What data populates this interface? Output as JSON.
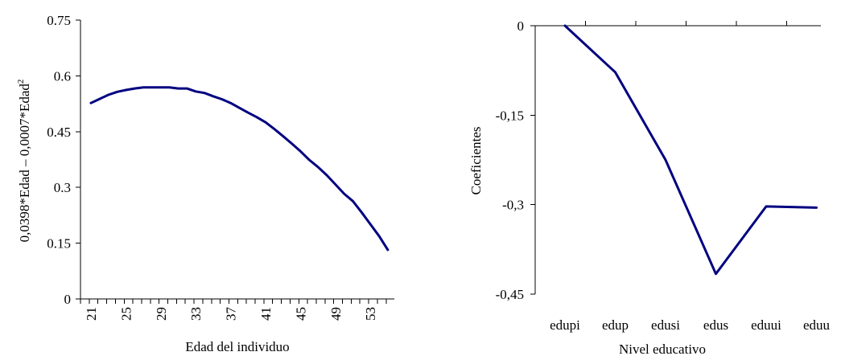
{
  "colors": {
    "series": "#000080",
    "axis": "#000000",
    "background": "#ffffff"
  },
  "chart_data": [
    {
      "type": "line",
      "title": "",
      "xlabel": "Edad del individuo",
      "ylabel_main": "0,0398*Edad – 0,0007*Edad",
      "ylabel_sup": "2",
      "ylim": [
        0,
        0.75
      ],
      "yticks": [
        "0",
        "0.15",
        "0.3",
        "0.45",
        "0.6",
        "0.75"
      ],
      "xticks": [
        "21",
        "25",
        "29",
        "33",
        "37",
        "41",
        "45",
        "49",
        "53"
      ],
      "x": [
        21,
        22,
        23,
        24,
        25,
        26,
        27,
        28,
        29,
        30,
        31,
        32,
        33,
        34,
        35,
        36,
        37,
        38,
        39,
        40,
        41,
        42,
        43,
        44,
        45,
        46,
        47,
        48,
        49,
        50,
        51,
        52,
        53,
        54,
        55
      ],
      "series": [
        {
          "values": [
            0.527,
            0.538,
            0.549,
            0.557,
            0.562,
            0.566,
            0.569,
            0.569,
            0.569,
            0.569,
            0.566,
            0.566,
            0.558,
            0.554,
            0.545,
            0.537,
            0.527,
            0.514,
            0.501,
            0.489,
            0.475,
            0.457,
            0.438,
            0.418,
            0.397,
            0.374,
            0.355,
            0.333,
            0.308,
            0.283,
            0.263,
            0.233,
            0.201,
            0.169,
            0.132
          ]
        }
      ],
      "grid": false,
      "legend": "none"
    },
    {
      "type": "line",
      "title": "",
      "xlabel": "Nivel educativo",
      "ylabel": "Coeficientes",
      "ylim": [
        -0.45,
        0
      ],
      "yticks": [
        "0",
        "-0,15",
        "-0,3",
        "-0,45"
      ],
      "categories": [
        "edupi",
        "edup",
        "edusi",
        "edus",
        "eduui",
        "eduu"
      ],
      "series": [
        {
          "values": [
            0,
            -0.078,
            -0.225,
            -0.416,
            -0.303,
            -0.305
          ]
        }
      ],
      "grid": false,
      "legend": "none"
    }
  ]
}
